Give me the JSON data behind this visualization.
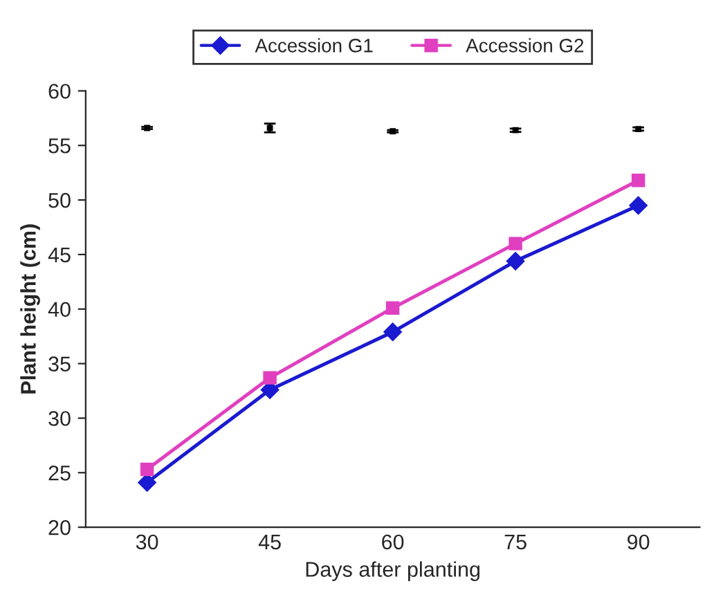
{
  "chart_data": {
    "type": "line",
    "xlabel": "Days after planting",
    "ylabel": "Plant height (cm)",
    "categories": [
      "30",
      "45",
      "60",
      "75",
      "90"
    ],
    "series": [
      {
        "name": "Accession G1",
        "color": "#1a1ad0",
        "marker": "diamond",
        "values": [
          24.1,
          32.6,
          37.9,
          44.4,
          49.5
        ]
      },
      {
        "name": "Accession G2",
        "color": "#e040c0",
        "marker": "square",
        "values": [
          25.3,
          33.7,
          40.1,
          46.0,
          51.8
        ]
      },
      {
        "type": "scatter",
        "color": "#000000",
        "marker": "square",
        "values": [
          56.6,
          56.6,
          56.3,
          56.4,
          56.5
        ],
        "errors": [
          0.1,
          0.4,
          0.1,
          0.15,
          0.15
        ]
      }
    ],
    "ylim": [
      20,
      60
    ],
    "yticks": [
      20,
      25,
      30,
      35,
      40,
      45,
      50,
      55,
      60
    ],
    "grid": false,
    "legend": "top",
    "line_style": "solid"
  }
}
